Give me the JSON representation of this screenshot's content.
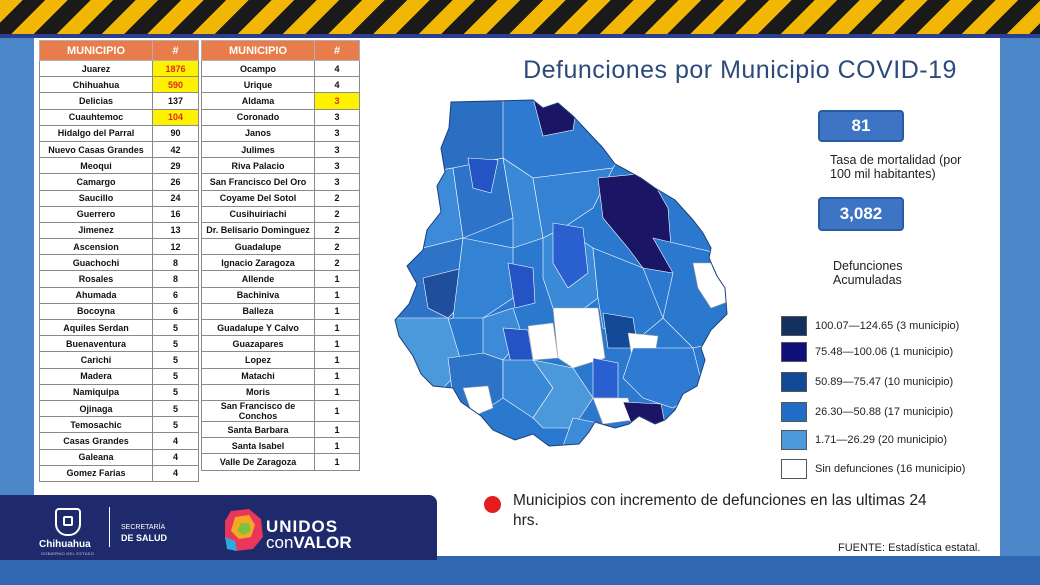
{
  "title": "Defunciones por Municipio COVID-19",
  "colors": {
    "header_orange": "#e87d4b",
    "highlight_yellow": "#fff200",
    "highlight_red_text": "#e0281f",
    "stat_box": "#3e74c4",
    "legend": [
      "#13305e",
      "#10107a",
      "#124a98",
      "#1f6dc4",
      "#4b98db",
      "#ffffff"
    ]
  },
  "table_headers": {
    "municipio": "MUNICIPIO",
    "count": "#"
  },
  "table1": [
    {
      "name": "Juarez",
      "n": "1876",
      "hl": true
    },
    {
      "name": "Chihuahua",
      "n": "590",
      "hl": true
    },
    {
      "name": "Delicias",
      "n": "137"
    },
    {
      "name": "Cuauhtemoc",
      "n": "104",
      "hl": true
    },
    {
      "name": "Hidalgo del Parral",
      "n": "90"
    },
    {
      "name": "Nuevo Casas Grandes",
      "n": "42"
    },
    {
      "name": "Meoqui",
      "n": "29"
    },
    {
      "name": "Camargo",
      "n": "26"
    },
    {
      "name": "Saucillo",
      "n": "24"
    },
    {
      "name": "Guerrero",
      "n": "16"
    },
    {
      "name": "Jimenez",
      "n": "13"
    },
    {
      "name": "Ascension",
      "n": "12"
    },
    {
      "name": "Guachochi",
      "n": "8"
    },
    {
      "name": "Rosales",
      "n": "8"
    },
    {
      "name": "Ahumada",
      "n": "6"
    },
    {
      "name": "Bocoyna",
      "n": "6"
    },
    {
      "name": "Aquiles Serdan",
      "n": "5"
    },
    {
      "name": "Buenaventura",
      "n": "5"
    },
    {
      "name": "Carichi",
      "n": "5"
    },
    {
      "name": "Madera",
      "n": "5"
    },
    {
      "name": "Namiquipa",
      "n": "5"
    },
    {
      "name": "Ojinaga",
      "n": "5"
    },
    {
      "name": "Temosachic",
      "n": "5"
    },
    {
      "name": "Casas Grandes",
      "n": "4"
    },
    {
      "name": "Galeana",
      "n": "4"
    },
    {
      "name": "Gomez Farias",
      "n": "4"
    }
  ],
  "table2": [
    {
      "name": "Ocampo",
      "n": "4"
    },
    {
      "name": "Urique",
      "n": "4"
    },
    {
      "name": "Aldama",
      "n": "3",
      "hl": true
    },
    {
      "name": "Coronado",
      "n": "3"
    },
    {
      "name": "Janos",
      "n": "3"
    },
    {
      "name": "Julimes",
      "n": "3"
    },
    {
      "name": "Riva Palacio",
      "n": "3"
    },
    {
      "name": "San Francisco Del Oro",
      "n": "3"
    },
    {
      "name": "Coyame Del Sotol",
      "n": "2"
    },
    {
      "name": "Cusihuiriachi",
      "n": "2"
    },
    {
      "name": "Dr. Belisario Dominguez",
      "n": "2"
    },
    {
      "name": "Guadalupe",
      "n": "2"
    },
    {
      "name": "Ignacio Zaragoza",
      "n": "2"
    },
    {
      "name": "Allende",
      "n": "1"
    },
    {
      "name": "Bachiniva",
      "n": "1"
    },
    {
      "name": "Balleza",
      "n": "1"
    },
    {
      "name": "Guadalupe Y Calvo",
      "n": "1"
    },
    {
      "name": "Guazapares",
      "n": "1"
    },
    {
      "name": "Lopez",
      "n": "1"
    },
    {
      "name": "Matachi",
      "n": "1"
    },
    {
      "name": "Moris",
      "n": "1"
    },
    {
      "name": "San Francisco de Conchos",
      "n": "1"
    },
    {
      "name": "Santa Barbara",
      "n": "1"
    },
    {
      "name": "Santa Isabel",
      "n": "1"
    },
    {
      "name": "Valle De Zaragoza",
      "n": "1"
    }
  ],
  "stats": {
    "rate_value": "81",
    "rate_label": "Tasa de mortalidad (por 100 mil habitantes)",
    "total_value": "3,082",
    "total_label": "Defunciones Acumuladas"
  },
  "legend": [
    "100.07—124.65 (3 municipio)",
    "75.48—100.06 (1 municipio)",
    "50.89—75.47 (10 municipio)",
    "26.30—50.88 (17 municipio)",
    "1.71—26.29 (20 municipio)",
    "Sin defunciones (16 municipio)"
  ],
  "note": "Municipios  con incremento de defunciones  en las ultimas 24 hrs.",
  "source": "FUENTE: Estadística estatal.",
  "footer": {
    "state": "Chihuahua",
    "state_sub": "GOBIERNO DEL ESTADO",
    "secretaria": "SECRETARÍA",
    "salud": "DE SALUD",
    "unidos": "UNIDOS",
    "con": "con",
    "valor": "VALOR"
  }
}
